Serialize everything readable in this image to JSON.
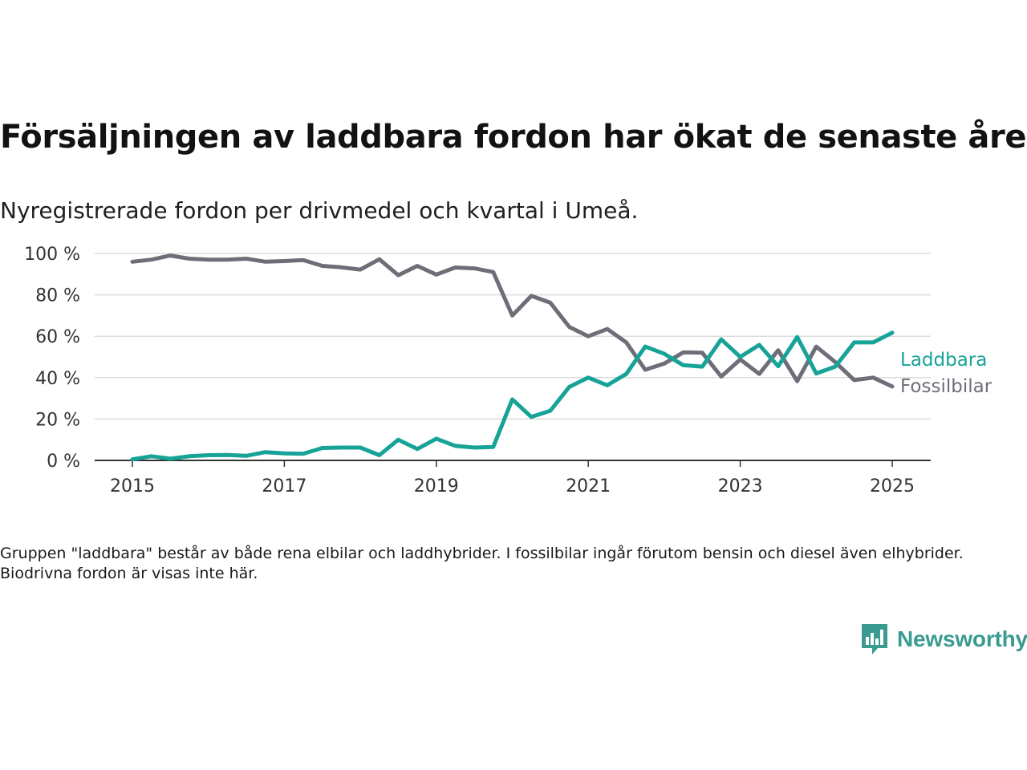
{
  "header": {
    "title": "Försäljningen av laddbara fordon har ökat de senaste åren",
    "subtitle": "Nyregistrerade fordon per drivmedel och kvartal i Umeå."
  },
  "footer": {
    "note": "Gruppen \"laddbara\" består av både rena elbilar och laddhybrider. I fossilbilar ingår förutom bensin och diesel även elhybrider. Biodrivna fordon är visas inte här.",
    "brand": "Newsworthy"
  },
  "colors": {
    "laddbara": "#17a398",
    "fossil": "#6e6e78",
    "grid": "#dcdcdc",
    "axis": "#333333",
    "brand": "#3a9b91"
  },
  "chart_data": {
    "type": "line",
    "title": "Försäljningen av laddbara fordon har ökat de senaste åren",
    "subtitle": "Nyregistrerade fordon per drivmedel och kvartal i Umeå.",
    "xlabel": "",
    "ylabel": "",
    "x_unit": "year (quarterly data)",
    "xlim": [
      2014.5,
      2025.5
    ],
    "ylim": [
      0,
      100
    ],
    "x_ticks": [
      2015,
      2017,
      2019,
      2021,
      2023,
      2025
    ],
    "x_tick_labels": [
      "2015",
      "2017",
      "2019",
      "2021",
      "2023",
      "2025"
    ],
    "y_ticks": [
      0,
      20,
      40,
      60,
      80,
      100
    ],
    "y_tick_labels": [
      "0 %",
      "20 %",
      "40 %",
      "60 %",
      "80 %",
      "100 %"
    ],
    "grid": "horizontal",
    "legend": "direct labels at right end of lines",
    "x": [
      2015.0,
      2015.25,
      2015.5,
      2015.75,
      2016.0,
      2016.25,
      2016.5,
      2016.75,
      2017.0,
      2017.25,
      2017.5,
      2017.75,
      2018.0,
      2018.25,
      2018.5,
      2018.75,
      2019.0,
      2019.25,
      2019.5,
      2019.75,
      2020.0,
      2020.25,
      2020.5,
      2020.75,
      2021.0,
      2021.25,
      2021.5,
      2021.75,
      2022.0,
      2022.25,
      2022.5,
      2022.75,
      2023.0,
      2023.25,
      2023.5,
      2023.75,
      2024.0,
      2024.25,
      2024.5,
      2024.75,
      2025.0
    ],
    "series": [
      {
        "name": "Laddbara",
        "color": "#17a398",
        "values": [
          0.5,
          2.0,
          0.8,
          2.0,
          2.5,
          2.6,
          2.2,
          4.0,
          3.4,
          3.2,
          6.0,
          6.2,
          6.2,
          2.5,
          10.0,
          5.5,
          10.5,
          7.0,
          6.2,
          6.5,
          29.5,
          21.0,
          24.0,
          35.5,
          40.0,
          36.3,
          41.8,
          55.0,
          51.5,
          46.0,
          45.3,
          58.5,
          50.0,
          55.8,
          45.5,
          59.6,
          42.0,
          45.3,
          57.0,
          57.0,
          61.7
        ]
      },
      {
        "name": "Fossilbilar",
        "color": "#6e6e78",
        "values": [
          96.0,
          97.0,
          99.0,
          97.5,
          97.0,
          97.0,
          97.5,
          96.0,
          96.3,
          96.8,
          94.0,
          93.3,
          92.2,
          97.2,
          89.5,
          94.0,
          89.8,
          93.2,
          92.8,
          91.0,
          70.0,
          79.5,
          76.2,
          64.5,
          60.0,
          63.5,
          57.0,
          43.8,
          46.8,
          52.2,
          52.0,
          40.5,
          48.8,
          41.8,
          53.2,
          38.3,
          55.0,
          47.5,
          38.8,
          40.0,
          35.7
        ]
      }
    ]
  }
}
